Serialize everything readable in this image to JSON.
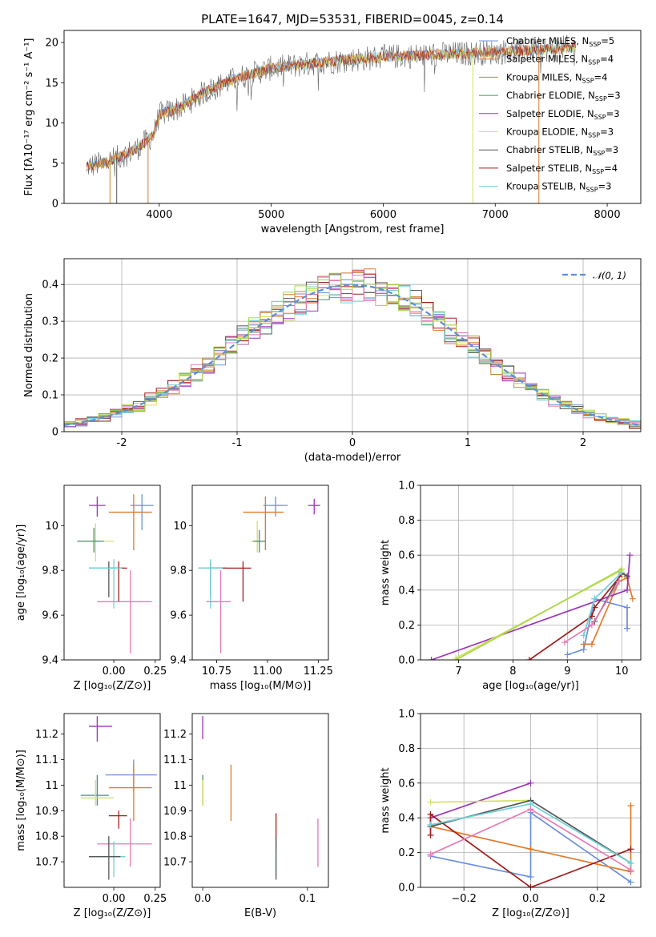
{
  "colors": {
    "Chabrier MILES": "#6a8fdc",
    "Salpeter MILES": "#e07a2a",
    "Kroupa MILES": "#c9822a",
    "Chabrier ELODIE": "#4e8f6c",
    "Salpeter ELODIE": "#9a34b8",
    "Kroupa ELODIE": "#d6e060",
    "Chabrier STELIB": "#555555",
    "Salpeter STELIB": "#a11d1d",
    "Kroupa STELIB": "#6fd0d6",
    "pink": "#e87ab4",
    "lime": "#a8d84a",
    "normal": "#5b8fd6"
  },
  "chart_data": [
    {
      "type": "line",
      "id": "spectrum",
      "title": "PLATE=1647, MJD=53531, FIBERID=0045, z=0.14",
      "xlabel": "wavelength [Angstrom, rest frame]",
      "ylabel": "Flux [fλ10⁻¹⁷ erg cm⁻² s⁻¹ A⁻¹]",
      "xlim": [
        3150,
        8300
      ],
      "ylim": [
        0,
        21.5
      ],
      "xticks": [
        4000,
        5000,
        6000,
        7000,
        8000
      ],
      "yticks": [
        0,
        5,
        10,
        15,
        20
      ],
      "spectrum_knots": [
        [
          3350,
          4.6
        ],
        [
          3500,
          5.0
        ],
        [
          3650,
          5.8
        ],
        [
          3800,
          6.8
        ],
        [
          3950,
          8.5
        ],
        [
          4000,
          11.0
        ],
        [
          4200,
          12.0
        ],
        [
          4400,
          13.8
        ],
        [
          4700,
          15.6
        ],
        [
          5000,
          16.8
        ],
        [
          5500,
          17.6
        ],
        [
          6000,
          18.2
        ],
        [
          6500,
          18.5
        ],
        [
          7000,
          18.8
        ],
        [
          7500,
          19.2
        ],
        [
          7700,
          19.4
        ]
      ],
      "legend": [
        {
          "label": "Chabrier MILES, N",
          "sub": "SSP",
          "suffix": "=5"
        },
        {
          "label": "Salpeter MILES, N",
          "sub": "SSP",
          "suffix": "=4"
        },
        {
          "label": "Kroupa MILES, N",
          "sub": "SSP",
          "suffix": "=4"
        },
        {
          "label": "Chabrier ELODIE, N",
          "sub": "SSP",
          "suffix": "=3"
        },
        {
          "label": "Salpeter ELODIE, N",
          "sub": "SSP",
          "suffix": "=3"
        },
        {
          "label": "Kroupa ELODIE, N",
          "sub": "SSP",
          "suffix": "=3"
        },
        {
          "label": "Chabrier STELIB, N",
          "sub": "SSP",
          "suffix": "=3"
        },
        {
          "label": "Salpeter STELIB, N",
          "sub": "SSP",
          "suffix": "=4"
        },
        {
          "label": "Kroupa STELIB, N",
          "sub": "SSP",
          "suffix": "=3"
        }
      ],
      "legend_position": "top-right"
    },
    {
      "type": "bar",
      "id": "residuals",
      "xlabel": "(data-model)/error",
      "ylabel": "Normed distribution",
      "xlim": [
        -2.5,
        2.5
      ],
      "ylim": [
        0,
        0.47
      ],
      "xticks": [
        -2,
        -1,
        0,
        1,
        2
      ],
      "yticks": [
        0.0,
        0.1,
        0.2,
        0.3,
        0.4
      ],
      "grid": true,
      "legend": "𝒩(0, 1)",
      "legend_position": "top-right",
      "bin_width": 0.1
    },
    {
      "type": "scatter",
      "id": "age_vs_Z",
      "xlabel": "Z [log₁₀(Z/Z⊙)]",
      "ylabel": "age  [log₁₀(age/yr)]",
      "xlim": [
        -0.3,
        0.28
      ],
      "ylim": [
        9.4,
        10.18
      ],
      "xticks": [
        0.0,
        0.25
      ],
      "xticklabels": [
        "0.00",
        "0.25"
      ],
      "yticks": [
        9.4,
        9.6,
        9.8,
        10.0
      ],
      "points": [
        {
          "c": "Chabrier MILES",
          "x": 0.17,
          "y": 10.09,
          "xl": 0.1,
          "xh": 0.24,
          "yl": 9.98,
          "yh": 10.14
        },
        {
          "c": "Salpeter MILES",
          "x": 0.12,
          "y": 10.06,
          "xl": -0.03,
          "xh": 0.23,
          "yl": 9.89,
          "yh": 10.14
        },
        {
          "c": "Salpeter ELODIE",
          "x": -0.1,
          "y": 10.09,
          "xl": -0.15,
          "xh": -0.05,
          "yl": 10.04,
          "yh": 10.13
        },
        {
          "c": "Kroupa ELODIE",
          "x": -0.11,
          "y": 9.93,
          "xl": -0.22,
          "xh": 0.0,
          "yl": 9.84,
          "yh": 10.01
        },
        {
          "c": "Chabrier ELODIE",
          "x": -0.12,
          "y": 9.93,
          "xl": -0.22,
          "xh": -0.06,
          "yl": 9.88,
          "yh": 9.99
        },
        {
          "c": "Chabrier STELIB",
          "x": -0.03,
          "y": 9.81,
          "xl": -0.15,
          "xh": 0.06,
          "yl": 9.68,
          "yh": 9.84
        },
        {
          "c": "Salpeter STELIB",
          "x": 0.03,
          "y": 9.81,
          "xl": -0.03,
          "xh": 0.08,
          "yl": 9.66,
          "yh": 9.84
        },
        {
          "c": "Kroupa STELIB",
          "x": 0.0,
          "y": 9.81,
          "xl": -0.15,
          "xh": 0.05,
          "yl": 9.63,
          "yh": 9.85
        },
        {
          "c": "pink",
          "x": 0.1,
          "y": 9.66,
          "xl": -0.1,
          "xh": 0.23,
          "yl": 9.43,
          "yh": 9.8
        }
      ]
    },
    {
      "type": "scatter",
      "id": "age_vs_mass",
      "xlabel": "mass [log₁₀(M/M⊙)]",
      "xlim": [
        10.63,
        11.3
      ],
      "ylim": [
        9.4,
        10.18
      ],
      "xticks": [
        10.75,
        11.0,
        11.25
      ],
      "xticklabels": [
        "10.75",
        "11.00",
        "11.25"
      ],
      "yticks": [
        9.4,
        9.6,
        9.8,
        10.0
      ],
      "points": [
        {
          "c": "Chabrier MILES",
          "x": 11.04,
          "y": 10.09,
          "xl": 10.98,
          "xh": 11.1,
          "yl": 10.04,
          "yh": 10.13
        },
        {
          "c": "Salpeter MILES",
          "x": 10.99,
          "y": 10.06,
          "xl": 10.88,
          "xh": 11.08,
          "yl": 9.89,
          "yh": 10.13
        },
        {
          "c": "Salpeter ELODIE",
          "x": 11.23,
          "y": 10.09,
          "xl": 11.2,
          "xh": 11.26,
          "yl": 10.05,
          "yh": 10.12
        },
        {
          "c": "Kroupa ELODIE",
          "x": 10.95,
          "y": 9.93,
          "xl": 10.92,
          "xh": 10.99,
          "yl": 9.88,
          "yh": 10.02
        },
        {
          "c": "Chabrier ELODIE",
          "x": 10.96,
          "y": 9.93,
          "xl": 10.93,
          "xh": 10.99,
          "yl": 9.88,
          "yh": 9.98
        },
        {
          "c": "Chabrier STELIB",
          "x": 10.72,
          "y": 9.81,
          "xl": 10.66,
          "xh": 10.8,
          "yl": 9.68,
          "yh": 9.84
        },
        {
          "c": "Salpeter STELIB",
          "x": 10.88,
          "y": 9.81,
          "xl": 10.72,
          "xh": 10.92,
          "yl": 9.66,
          "yh": 9.84
        },
        {
          "c": "Kroupa STELIB",
          "x": 10.72,
          "y": 9.81,
          "xl": 10.66,
          "xh": 10.78,
          "yl": 9.63,
          "yh": 9.85
        },
        {
          "c": "pink",
          "x": 10.77,
          "y": 9.66,
          "xl": 10.7,
          "xh": 10.82,
          "yl": 9.43,
          "yh": 9.8
        }
      ]
    },
    {
      "type": "line",
      "id": "weight_vs_age",
      "xlabel": "age  [log₁₀(age/yr)]",
      "ylabel": "mass weight",
      "xlim": [
        6.3,
        10.35
      ],
      "ylim": [
        0,
        1.0
      ],
      "xticks": [
        7,
        8,
        9,
        10
      ],
      "yticks": [
        0.0,
        0.2,
        0.4,
        0.6,
        0.8,
        1.0
      ],
      "yticklabels": [
        "0.0",
        "0.2",
        "0.4",
        "0.6",
        "0.8",
        "1.0"
      ],
      "grid": true,
      "series": [
        {
          "c": "Chabrier MILES",
          "points": [
            [
              9.0,
              0.03
            ],
            [
              9.3,
              0.06
            ],
            [
              9.5,
              0.35
            ],
            [
              10.1,
              0.3
            ],
            [
              10.1,
              0.18
            ]
          ]
        },
        {
          "c": "Salpeter MILES",
          "points": [
            [
              9.3,
              0.09
            ],
            [
              9.45,
              0.09
            ],
            [
              9.95,
              0.45
            ],
            [
              10.1,
              0.47
            ],
            [
              10.2,
              0.35
            ]
          ]
        },
        {
          "c": "Salpeter ELODIE",
          "points": [
            [
              6.5,
              0.0
            ],
            [
              10.1,
              0.4
            ],
            [
              10.15,
              0.6
            ]
          ]
        },
        {
          "c": "Kroupa ELODIE",
          "points": [
            [
              6.95,
              0.01
            ],
            [
              9.98,
              0.51
            ],
            [
              10.0,
              0.48
            ]
          ]
        },
        {
          "c": "Chabrier STELIB",
          "points": [
            [
              9.5,
              0.22
            ],
            [
              10.0,
              0.5
            ],
            [
              10.1,
              0.48
            ]
          ]
        },
        {
          "c": "Salpeter STELIB",
          "points": [
            [
              8.3,
              0.0
            ],
            [
              9.45,
              0.25
            ],
            [
              9.5,
              0.3
            ],
            [
              10.0,
              0.49
            ]
          ]
        },
        {
          "c": "Kroupa STELIB",
          "points": [
            [
              9.3,
              0.14
            ],
            [
              9.5,
              0.35
            ],
            [
              10.0,
              0.5
            ]
          ]
        },
        {
          "c": "pink",
          "points": [
            [
              8.95,
              0.1
            ],
            [
              9.45,
              0.2
            ],
            [
              9.95,
              0.45
            ]
          ]
        },
        {
          "c": "lime",
          "points": [
            [
              6.95,
              0.0
            ],
            [
              10.0,
              0.52
            ]
          ]
        }
      ]
    },
    {
      "type": "scatter",
      "id": "mass_vs_Z",
      "xlabel": "Z [log₁₀(Z/Z⊙)]",
      "ylabel": "mass [log₁₀(M/M⊙)]",
      "xlim": [
        -0.3,
        0.28
      ],
      "ylim": [
        10.6,
        11.28
      ],
      "xticks": [
        0.0,
        0.25
      ],
      "xticklabels": [
        "0.00",
        "0.25"
      ],
      "yticks": [
        10.7,
        10.8,
        10.9,
        11.0,
        11.1,
        11.2
      ],
      "points": [
        {
          "c": "Salpeter ELODIE",
          "x": -0.1,
          "y": 11.23,
          "xl": -0.15,
          "xh": -0.01,
          "yl": 11.17,
          "yh": 11.27
        },
        {
          "c": "Chabrier MILES",
          "x": 0.12,
          "y": 11.04,
          "xl": -0.05,
          "xh": 0.26,
          "yl": 10.97,
          "yh": 11.1
        },
        {
          "c": "Salpeter MILES",
          "x": 0.12,
          "y": 10.99,
          "xl": -0.03,
          "xh": 0.23,
          "yl": 10.86,
          "yh": 11.08
        },
        {
          "c": "Chabrier ELODIE",
          "x": -0.1,
          "y": 10.96,
          "xl": -0.2,
          "xh": -0.03,
          "yl": 10.92,
          "yh": 11.04
        },
        {
          "c": "Kroupa ELODIE",
          "x": -0.11,
          "y": 10.95,
          "xl": -0.2,
          "xh": 0.0,
          "yl": 10.92,
          "yh": 11.02
        },
        {
          "c": "Salpeter STELIB",
          "x": 0.03,
          "y": 10.88,
          "xl": -0.03,
          "xh": 0.08,
          "yl": 10.83,
          "yh": 10.9
        },
        {
          "c": "pink",
          "x": 0.1,
          "y": 10.77,
          "xl": -0.1,
          "xh": 0.23,
          "yl": 10.68,
          "yh": 10.87
        },
        {
          "c": "Kroupa STELIB",
          "x": 0.0,
          "y": 10.72,
          "xl": -0.15,
          "xh": 0.07,
          "yl": 10.64,
          "yh": 10.78
        },
        {
          "c": "Chabrier STELIB",
          "x": -0.03,
          "y": 10.72,
          "xl": -0.15,
          "xh": 0.04,
          "yl": 10.63,
          "yh": 10.8
        }
      ]
    },
    {
      "type": "scatter",
      "id": "mass_vs_EBV",
      "xlabel": "E(B-V)",
      "xlim": [
        -0.01,
        0.12
      ],
      "ylim": [
        10.6,
        11.28
      ],
      "xticks": [
        0.0,
        0.1
      ],
      "xticklabels": [
        "0.0",
        "0.1"
      ],
      "yticks": [
        10.7,
        10.8,
        10.9,
        11.0,
        11.1,
        11.2
      ],
      "points": [
        {
          "c": "Salpeter ELODIE",
          "x": 0.0,
          "y": 11.23,
          "yl": 11.18,
          "yh": 11.27
        },
        {
          "c": "Chabrier ELODIE",
          "x": 0.0,
          "y": 10.97,
          "yl": 10.92,
          "yh": 11.04
        },
        {
          "c": "Kroupa ELODIE",
          "x": 0.0,
          "y": 10.96,
          "yl": 10.92,
          "yh": 11.02
        },
        {
          "c": "Salpeter MILES",
          "x": 0.027,
          "y": 10.99,
          "yl": 10.86,
          "yh": 11.08
        },
        {
          "c": "Salpeter STELIB",
          "x": 0.07,
          "y": 10.82,
          "yl": 10.75,
          "yh": 10.89
        },
        {
          "c": "Kroupa STELIB",
          "x": 0.07,
          "y": 10.72,
          "yl": 10.64,
          "yh": 10.78
        },
        {
          "c": "Chabrier STELIB",
          "x": 0.07,
          "y": 10.73,
          "yl": 10.63,
          "yh": 10.8
        },
        {
          "c": "pink",
          "x": 0.11,
          "y": 10.77,
          "yl": 10.68,
          "yh": 10.87
        }
      ]
    },
    {
      "type": "line",
      "id": "weight_vs_Z",
      "xlabel": "Z [log₁₀(Z/Z⊙)]",
      "ylabel": "mass weight",
      "xlim": [
        -0.33,
        0.33
      ],
      "ylim": [
        0,
        1.0
      ],
      "xticks": [
        -0.2,
        0.0,
        0.2
      ],
      "xticklabels": [
        "−0.2",
        "0.0",
        "0.2"
      ],
      "yticks": [
        0.0,
        0.2,
        0.4,
        0.6,
        0.8,
        1.0
      ],
      "yticklabels": [
        "0.0",
        "0.2",
        "0.4",
        "0.6",
        "0.8",
        "1.0"
      ],
      "grid": true,
      "series": [
        {
          "c": "Chabrier MILES",
          "points": [
            [
              -0.3,
              0.18
            ],
            [
              0.0,
              0.06
            ],
            [
              0.0,
              0.43
            ],
            [
              0.3,
              0.03
            ]
          ]
        },
        {
          "c": "Salpeter MILES",
          "points": [
            [
              -0.3,
              0.35
            ],
            [
              0.0,
              0.22
            ],
            [
              0.3,
              0.09
            ],
            [
              0.3,
              0.47
            ]
          ]
        },
        {
          "c": "Salpeter ELODIE",
          "points": [
            [
              -0.3,
              0.4
            ],
            [
              0.0,
              0.6
            ]
          ]
        },
        {
          "c": "Kroupa ELODIE",
          "points": [
            [
              -0.3,
              0.49
            ],
            [
              0.0,
              0.5
            ]
          ]
        },
        {
          "c": "Chabrier STELIB",
          "points": [
            [
              -0.3,
              0.35
            ],
            [
              0.0,
              0.5
            ],
            [
              0.3,
              0.14
            ]
          ]
        },
        {
          "c": "Salpeter STELIB",
          "points": [
            [
              -0.3,
              0.3
            ],
            [
              -0.3,
              0.42
            ],
            [
              0.0,
              0.0
            ],
            [
              0.3,
              0.22
            ]
          ]
        },
        {
          "c": "Kroupa STELIB",
          "points": [
            [
              -0.3,
              0.36
            ],
            [
              0.0,
              0.48
            ],
            [
              0.3,
              0.14
            ]
          ]
        },
        {
          "c": "pink",
          "points": [
            [
              -0.3,
              0.19
            ],
            [
              0.0,
              0.45
            ],
            [
              0.3,
              0.1
            ]
          ]
        }
      ]
    }
  ]
}
